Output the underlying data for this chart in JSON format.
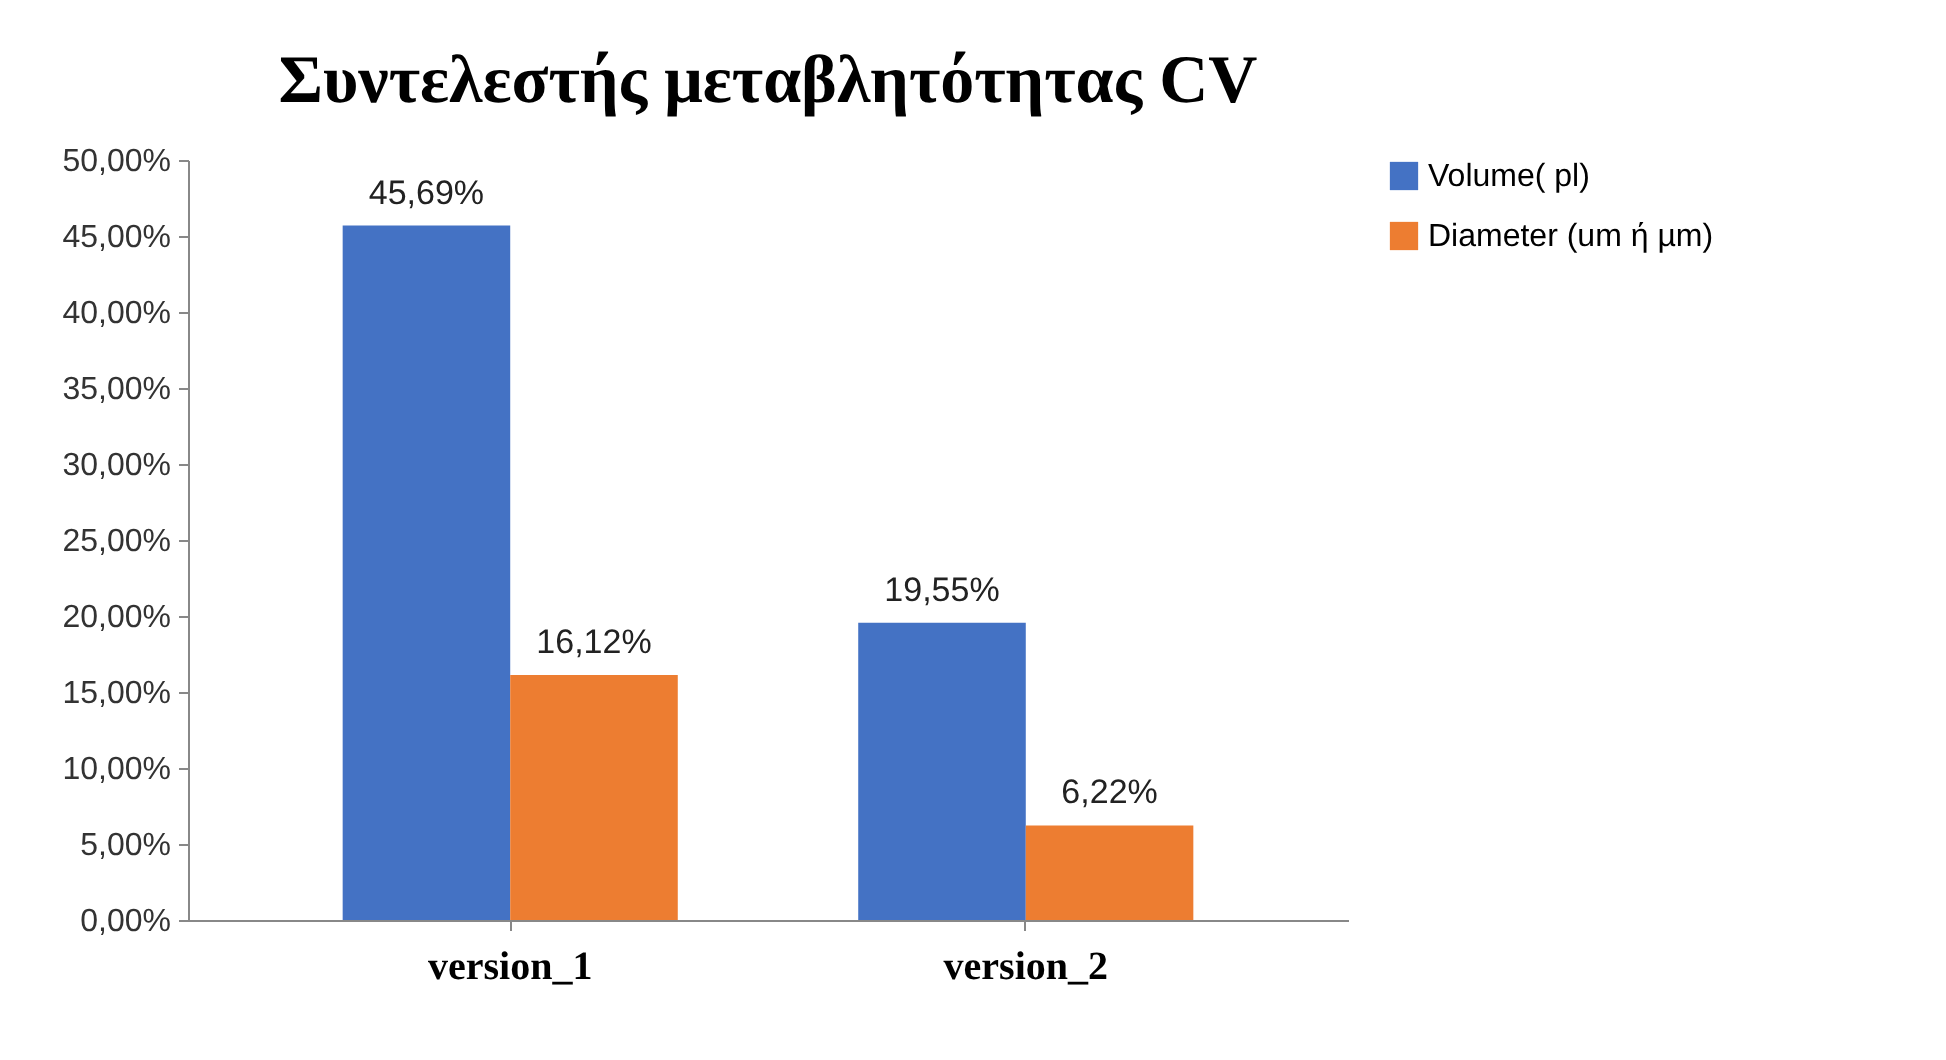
{
  "chart_data": {
    "type": "bar",
    "title": "Συντελεστής μεταβλητότητας CV",
    "categories": [
      "version_1",
      "version_2"
    ],
    "series": [
      {
        "name": "Volume( pl)",
        "color": "#4472c4",
        "values": [
          45.69,
          19.55
        ],
        "value_labels": [
          "45,69%",
          "19,55%"
        ]
      },
      {
        "name": "Diameter (um ή µm)",
        "color": "#ed7d31",
        "values": [
          16.12,
          6.22
        ],
        "value_labels": [
          "16,12%",
          "6,22%"
        ]
      }
    ],
    "ylim": [
      0,
      50
    ],
    "yticks": [
      {
        "value": 0,
        "label": "0,00%"
      },
      {
        "value": 5,
        "label": "5,00%"
      },
      {
        "value": 10,
        "label": "10,00%"
      },
      {
        "value": 15,
        "label": "15,00%"
      },
      {
        "value": 20,
        "label": "20,00%"
      },
      {
        "value": 25,
        "label": "25,00%"
      },
      {
        "value": 30,
        "label": "30,00%"
      },
      {
        "value": 35,
        "label": "35,00%"
      },
      {
        "value": 40,
        "label": "40,00%"
      },
      {
        "value": 45,
        "label": "45,00%"
      },
      {
        "value": 50,
        "label": "50,00%"
      }
    ],
    "grid": false,
    "legend": "right"
  }
}
